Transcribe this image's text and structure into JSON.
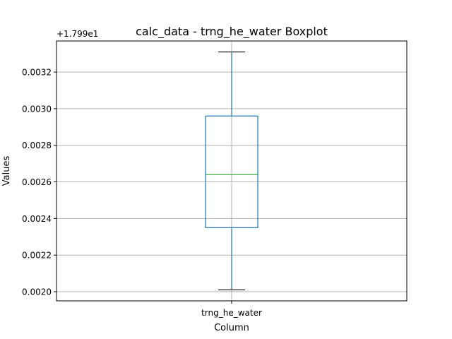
{
  "chart_data": {
    "type": "boxplot",
    "title": "calc_data - trng_he_water Boxplot",
    "xlabel": "Column",
    "ylabel": "Values",
    "offset_label": "+1.799e1",
    "y_offset": 17.99,
    "categories": [
      "trng_he_water"
    ],
    "boxes": [
      {
        "category": "trng_he_water",
        "whisker_low": 0.00201,
        "q1": 0.00235,
        "median": 0.00264,
        "q3": 0.00296,
        "whisker_high": 0.00331
      }
    ],
    "ylim": [
      0.00195,
      0.00337
    ],
    "yticks": [
      0.002,
      0.0022,
      0.0024,
      0.0026,
      0.0028,
      0.003,
      0.0032
    ],
    "ytick_labels": [
      "0.0020",
      "0.0022",
      "0.0024",
      "0.0026",
      "0.0028",
      "0.0030",
      "0.0032"
    ],
    "grid": true,
    "colors": {
      "box": "#1f77b4",
      "median": "#2ca02c",
      "whisker": "#1f77b4",
      "cap": "#000000",
      "grid": "#b0b0b0",
      "axes": "#000000"
    }
  }
}
